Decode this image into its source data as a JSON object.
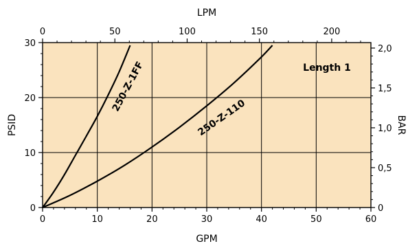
{
  "chart_data": {
    "type": "line",
    "annotation": "Length 1",
    "x_bottom": {
      "label": "GPM",
      "range": [
        0,
        60
      ],
      "ticks": [
        0,
        10,
        20,
        30,
        40,
        50,
        60
      ],
      "tick_labels": [
        "0",
        "10",
        "20",
        "30",
        "40",
        "50",
        "60"
      ]
    },
    "x_top": {
      "label": "LPM",
      "ticks": [
        0,
        50,
        100,
        150,
        200
      ],
      "tick_labels": [
        "0",
        "50",
        "100",
        "150",
        "200"
      ]
    },
    "y_left": {
      "label": "PSID",
      "range": [
        0,
        30
      ],
      "ticks": [
        0,
        10,
        20,
        30
      ],
      "tick_labels": [
        "0",
        "10",
        "20",
        "30"
      ]
    },
    "y_right": {
      "label": "BAR",
      "ticks": [
        0,
        0.5,
        1.0,
        1.5,
        2.0
      ],
      "tick_labels": [
        "0",
        "0,5",
        "1,0",
        "1,5",
        "2,0"
      ]
    },
    "grid": true,
    "series": [
      {
        "name": "250-Z-1FF",
        "x": [
          0,
          2,
          4,
          6,
          8,
          10,
          12,
          14,
          16
        ],
        "y": [
          0,
          2.8,
          6.0,
          9.5,
          13.0,
          16.6,
          20.5,
          24.7,
          29.5
        ]
      },
      {
        "name": "250-Z-110",
        "x": [
          0,
          5,
          10,
          15,
          20,
          25,
          30,
          35,
          40,
          42
        ],
        "y": [
          0,
          2.2,
          4.8,
          7.7,
          11.0,
          14.6,
          18.5,
          22.7,
          27.4,
          29.5
        ]
      }
    ],
    "colors": {
      "plot_background": "#FAE3BE",
      "lines": "#000000"
    }
  }
}
